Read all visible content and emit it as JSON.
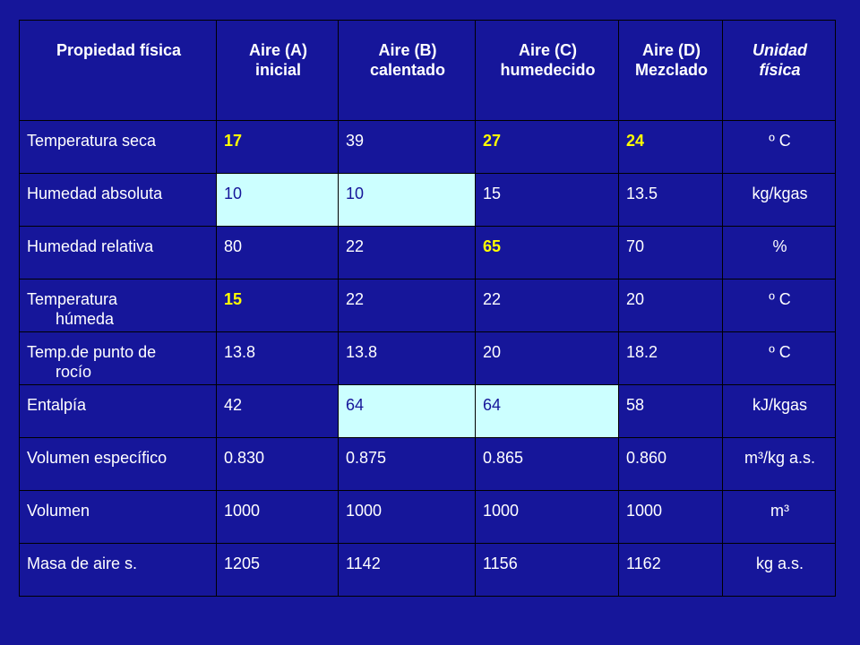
{
  "colors": {
    "background": "#16169a",
    "text": "#ffffff",
    "highlight_text": "#ffff00",
    "highlight_cell": "#ccffff",
    "grid": "#000000"
  },
  "table": {
    "headers": [
      "Propiedad física",
      "Aire (A) inicial",
      "Aire (B) calentado",
      "Aire (C) humedecido",
      "Aire (D) Mezclado",
      "Unidad física"
    ],
    "rows": [
      {
        "label_line1": "Temperatura seca",
        "label_line2": "",
        "a": "17",
        "b": "39",
        "c": "27",
        "d": "24",
        "unit": "º C"
      },
      {
        "label_line1": "Humedad absoluta",
        "label_line2": "",
        "a": "10",
        "b": "10",
        "c": "15",
        "d": "13.5",
        "unit": "kg/kgas"
      },
      {
        "label_line1": "Humedad relativa",
        "label_line2": "",
        "a": "80",
        "b": "22",
        "c": "65",
        "d": "70",
        "unit": "%"
      },
      {
        "label_line1": "Temperatura",
        "label_line2": "húmeda",
        "a": "15",
        "b": "22",
        "c": "22",
        "d": "20",
        "unit": "º C"
      },
      {
        "label_line1": "Temp.de punto de",
        "label_line2": "rocío",
        "a": "13.8",
        "b": "13.8",
        "c": "20",
        "d": "18.2",
        "unit": "º C"
      },
      {
        "label_line1": "Entalpía",
        "label_line2": "",
        "a": "42",
        "b": "64",
        "c": "64",
        "d": "58",
        "unit": "kJ/kgas"
      },
      {
        "label_line1": "Volumen específico",
        "label_line2": "",
        "a": "0.830",
        "b": "0.875",
        "c": "0.865",
        "d": "0.860",
        "unit": "m³/kg a.s."
      },
      {
        "label_line1": "Volumen",
        "label_line2": "",
        "a": "1000",
        "b": "1000",
        "c": "1000",
        "d": "1000",
        "unit": "m³"
      },
      {
        "label_line1": "Masa de aire s.",
        "label_line2": "",
        "a": "1205",
        "b": "1142",
        "c": "1156",
        "d": "1162",
        "unit": "kg a.s."
      }
    ]
  }
}
